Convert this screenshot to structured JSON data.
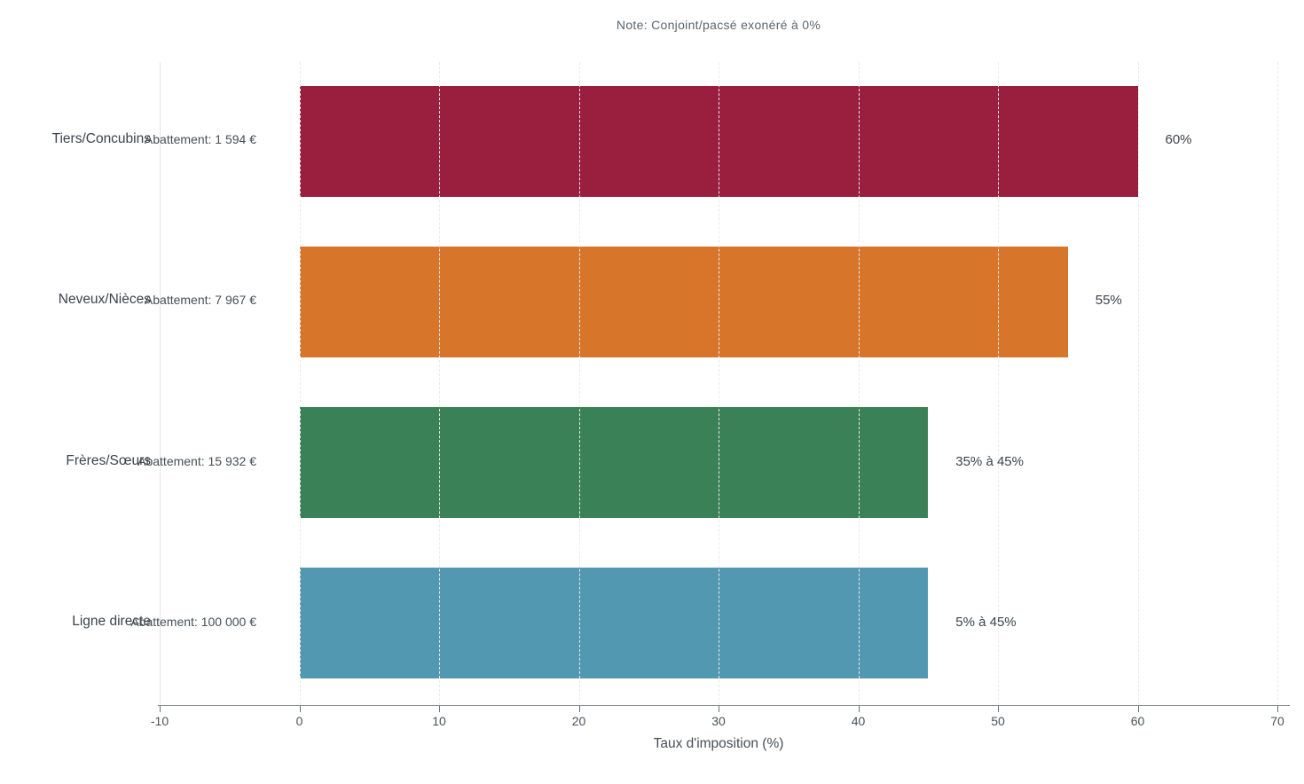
{
  "note": "Note: Conjoint/pacsé exonéré à 0%",
  "chart_data": {
    "type": "bar",
    "orientation": "horizontal",
    "title": "",
    "xlabel": "Taux d'imposition (%)",
    "ylabel": "",
    "categories": [
      "Tiers/Concubins",
      "Neveux/Nièces",
      "Frères/Sœurs",
      "Ligne directe"
    ],
    "values": [
      60,
      55,
      45,
      45
    ],
    "bar_labels": [
      "60%",
      "55%",
      "35% à 45%",
      "5% à 45%"
    ],
    "annotations": [
      "Abattement: 1 594 €",
      "Abattement: 7 967 €",
      "Abattement: 15 932 €",
      "Abattement: 100 000 €"
    ],
    "bar_colors": [
      "#9A1E3D",
      "#D7762B",
      "#3A8158",
      "#5198B0"
    ],
    "x_ticks": [
      -10,
      0,
      10,
      20,
      30,
      40,
      50,
      60,
      70
    ],
    "xlim": [
      -10,
      70
    ],
    "legend": null,
    "grid": {
      "axis": "x",
      "style": "dashed",
      "color": "#eaeaea",
      "drawn_over_bars": true
    }
  }
}
